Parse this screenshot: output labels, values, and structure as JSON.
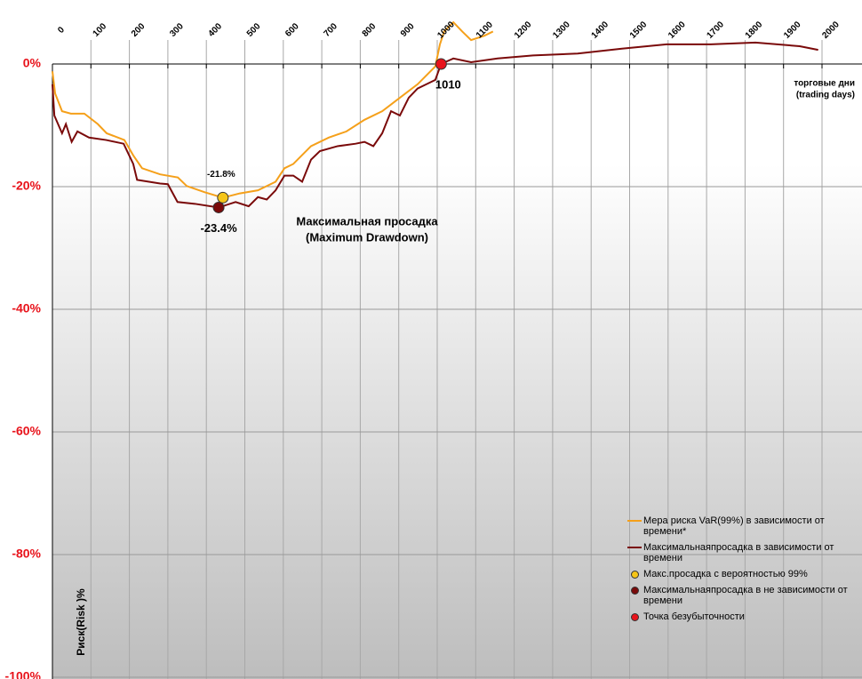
{
  "chart_data": {
    "type": "line",
    "xlabel": [
      "торговые дни",
      "(trading days)"
    ],
    "ylabel": "Риск(Risk )%",
    "annotation": [
      "Максимальная просадка",
      "(Maximum Drawdown)"
    ],
    "xlim": [
      0,
      2000
    ],
    "xticks": [
      0,
      100,
      200,
      300,
      400,
      500,
      600,
      700,
      800,
      900,
      1000,
      1100,
      1200,
      1300,
      1400,
      1500,
      1600,
      1700,
      1800,
      1900,
      2000
    ],
    "ylim": [
      -100,
      0
    ],
    "yticks": [
      {
        "value": 0,
        "label": "0%"
      },
      {
        "value": -20,
        "label": "-20%"
      },
      {
        "value": -40,
        "label": "-40%"
      },
      {
        "value": -60,
        "label": "-60%"
      },
      {
        "value": -80,
        "label": "-80%"
      },
      {
        "value": -100,
        "label": "-100%"
      }
    ],
    "grid": true,
    "series": [
      {
        "name": "Мера риска VaR(99%) в зависимости от времени*",
        "color": "#f5a01a",
        "x": [
          0,
          7,
          25,
          48,
          83,
          118,
          141,
          187,
          210,
          233,
          280,
          326,
          349,
          395,
          443,
          487,
          534,
          580,
          603,
          626,
          672,
          718,
          764,
          811,
          857,
          903,
          949,
          995,
          1007,
          1018,
          1042,
          1065,
          1088,
          1122,
          1145
        ],
        "values": [
          -1.2,
          -4.8,
          -7.7,
          -8.1,
          -8.1,
          -9.8,
          -11.3,
          -12.4,
          -14.9,
          -17.0,
          -18.0,
          -18.5,
          -19.9,
          -20.9,
          -21.8,
          -21.1,
          -20.6,
          -19.2,
          -17.0,
          -16.3,
          -13.4,
          -12.0,
          -11.0,
          -9.1,
          -7.7,
          -5.5,
          -3.3,
          -0.4,
          3.2,
          5.3,
          6.8,
          5.3,
          3.9,
          4.6,
          5.3
        ]
      },
      {
        "name": "Максимальнаяпросадка в зависимости от времени",
        "color": "#7a0a0a",
        "x": [
          0,
          5,
          25,
          35,
          50,
          65,
          95,
          140,
          185,
          210,
          220,
          280,
          300,
          325,
          370,
          432,
          476,
          510,
          534,
          557,
          580,
          603,
          626,
          649,
          672,
          695,
          741,
          788,
          811,
          834,
          857,
          880,
          903,
          926,
          949,
          972,
          995,
          1010,
          1042,
          1088,
          1157,
          1249,
          1365,
          1480,
          1596,
          1711,
          1827,
          1942,
          1990
        ],
        "values": [
          -3.3,
          -8.4,
          -11.3,
          -9.8,
          -12.7,
          -11.0,
          -12.0,
          -12.4,
          -13.0,
          -16.3,
          -18.9,
          -19.5,
          -19.6,
          -22.5,
          -22.8,
          -23.4,
          -22.5,
          -23.2,
          -21.7,
          -22.1,
          -20.6,
          -18.2,
          -18.2,
          -19.2,
          -15.6,
          -14.2,
          -13.4,
          -13.0,
          -12.7,
          -13.4,
          -11.3,
          -7.7,
          -8.4,
          -5.5,
          -4.0,
          -3.3,
          -2.6,
          0,
          0.9,
          0.3,
          0.9,
          1.4,
          1.7,
          2.5,
          3.2,
          3.2,
          3.5,
          2.9,
          2.3
        ]
      }
    ],
    "points": [
      {
        "name": "Макс.просадка с вероятностью 99%",
        "color": "#f5c518",
        "x": 443,
        "value": -21.8,
        "value_label": "-21.8%"
      },
      {
        "name": "Максимальнаяпросадка в не зависимости от времени",
        "color": "#7a0a0a",
        "x": 432,
        "value": -23.4,
        "value_label": "-23.4%"
      },
      {
        "name": "Точка безубыточности",
        "color": "#e8131b",
        "x": 1010,
        "value": 0
      }
    ]
  }
}
